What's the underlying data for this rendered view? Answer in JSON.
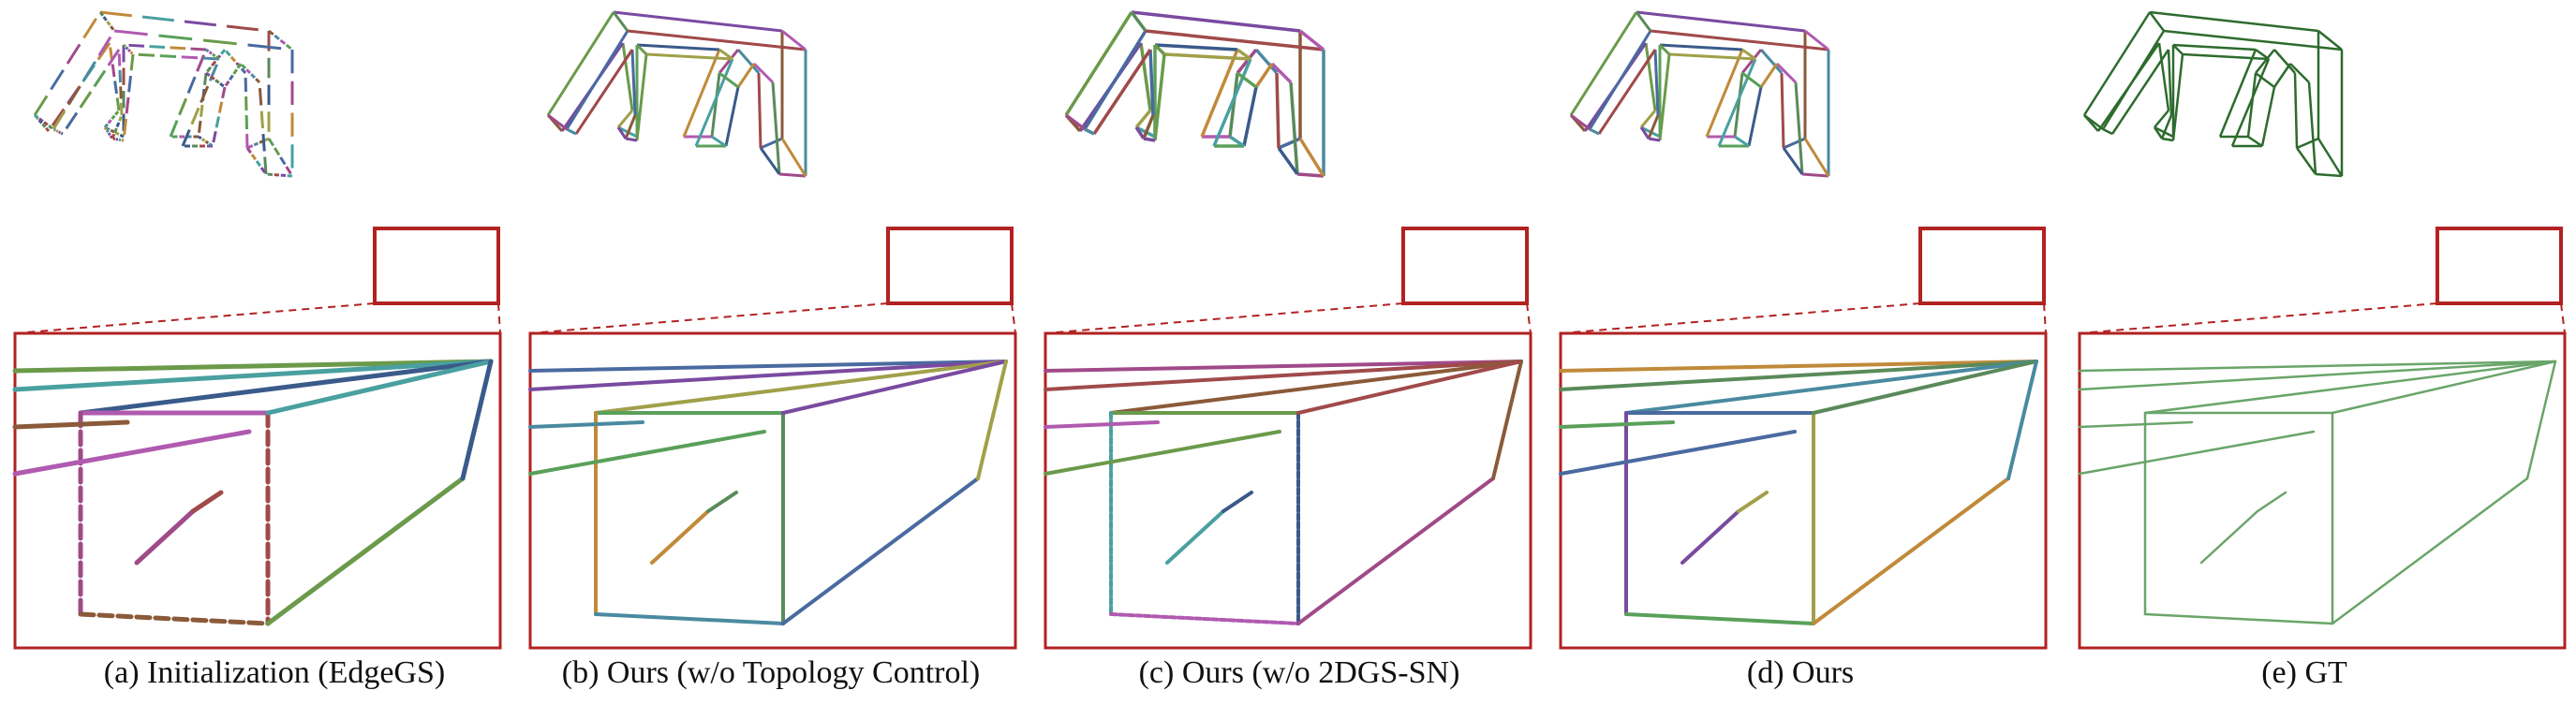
{
  "figure": {
    "panels": [
      {
        "caption": "(a) Initialization (EdgeGS)",
        "style": "fragmented"
      },
      {
        "caption": "(b) Ours (w/o Topology Control)",
        "style": "multicolor"
      },
      {
        "caption": "(c) Ours (w/o 2DGS-SN)",
        "style": "multicolor-dense"
      },
      {
        "caption": "(d) Ours",
        "style": "clean-multicolor"
      },
      {
        "caption": "(e) GT",
        "style": "green"
      }
    ],
    "colors": {
      "zoom_box": "#b22222",
      "gt_edges": "#2e6b2e",
      "gt_zoom_edges": "#6aa56a",
      "edge_palette": [
        "#6a9a4a",
        "#4a6aa0",
        "#a04a8a",
        "#c08a3a",
        "#4aa0a0",
        "#7a4aa0",
        "#a04a4a",
        "#5a8a5a",
        "#3a5a8a",
        "#a0a04a",
        "#8a5a3a",
        "#4a8aa0",
        "#b05ab0",
        "#5aa05a"
      ]
    }
  }
}
